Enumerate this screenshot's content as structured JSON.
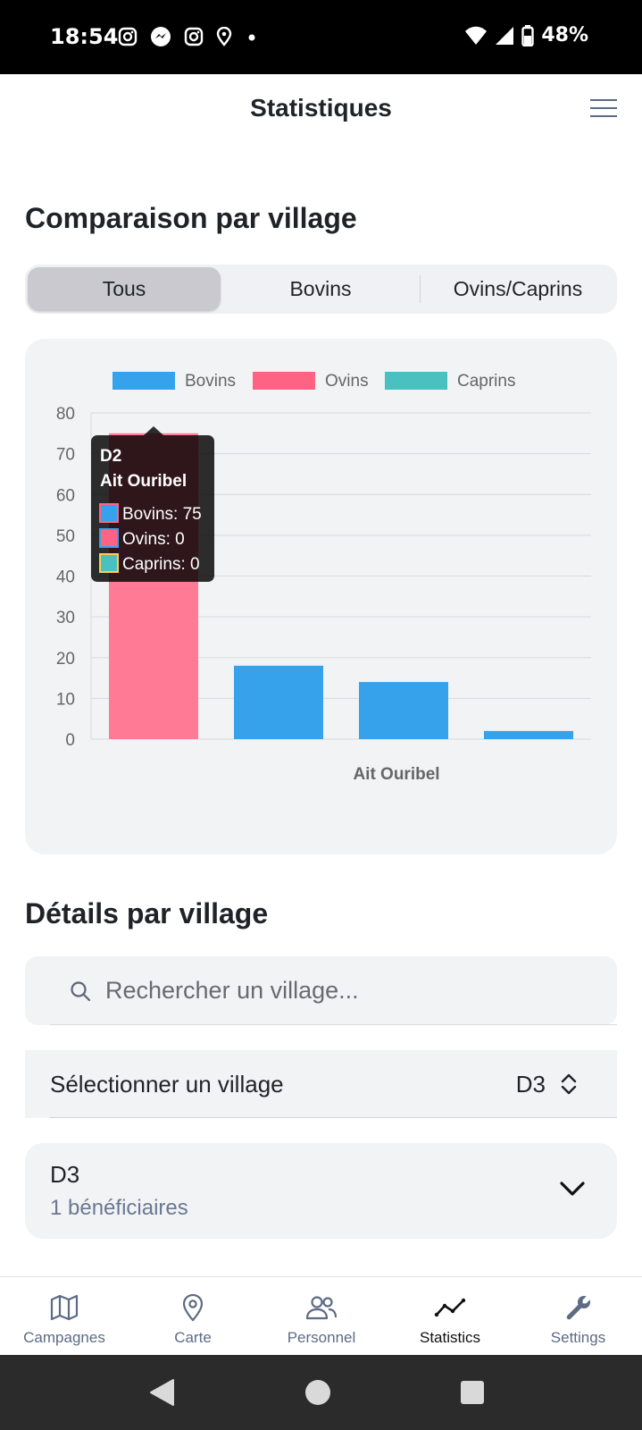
{
  "status_bar": {
    "time": "18:54",
    "battery": "48%",
    "icons": [
      "instagram-icon",
      "messenger-icon",
      "instagram-icon",
      "location-icon",
      "dot-icon",
      "wifi-icon",
      "signal-icon",
      "battery-icon"
    ]
  },
  "header": {
    "title": "Statistiques",
    "menu_icon": "hamburger-menu-icon"
  },
  "comparison": {
    "title": "Comparaison par village",
    "segments": [
      {
        "label": "Tous",
        "active": true
      },
      {
        "label": "Bovins",
        "active": false
      },
      {
        "label": "Ovins/Caprins",
        "active": false
      }
    ]
  },
  "chart_data": {
    "type": "bar",
    "title": "",
    "xlabel": "",
    "ylabel": "",
    "ylim": [
      0,
      80
    ],
    "yticks": [
      "0",
      "10",
      "20",
      "30",
      "40",
      "50",
      "60",
      "70",
      "80"
    ],
    "x_tick_label": "Ait Ouribel",
    "grid": true,
    "legend_position": "top",
    "legend": [
      {
        "name": "Bovins",
        "color": "#36a2eb"
      },
      {
        "name": "Ovins",
        "color": "#ff6384"
      },
      {
        "name": "Caprins",
        "color": "#4bc0c0"
      }
    ],
    "bars": [
      {
        "value": 75,
        "color": "#ff7a95",
        "highlighted": true
      },
      {
        "value": 18,
        "color": "#36a2eb"
      },
      {
        "value": 14,
        "color": "#36a2eb"
      },
      {
        "value": 2,
        "color": "#36a2eb"
      }
    ],
    "tooltip": {
      "title": "D2",
      "subtitle": "Ait Ouribel",
      "lines": [
        {
          "text": "Bovins: 75",
          "swatch": "#36a2eb",
          "border": "#ff6384"
        },
        {
          "text": "Ovins: 0",
          "swatch": "#ff6384",
          "border": "#36a2eb"
        },
        {
          "text": "Caprins: 0",
          "swatch": "#4bc0c0",
          "border": "#ffcd56"
        }
      ]
    }
  },
  "details": {
    "title": "Détails par village",
    "search_placeholder": "Rechercher un village...",
    "search_value": "",
    "select_label": "Sélectionner un village",
    "select_value": "D3",
    "village": {
      "name": "D3",
      "subtitle": "1 bénéficiaires"
    }
  },
  "bottom_nav": [
    {
      "label": "Campagnes",
      "icon": "map-icon",
      "active": false
    },
    {
      "label": "Carte",
      "icon": "map-pin-icon",
      "active": false
    },
    {
      "label": "Personnel",
      "icon": "users-icon",
      "active": false
    },
    {
      "label": "Statistics",
      "icon": "trend-line-icon",
      "active": true
    },
    {
      "label": "Settings",
      "icon": "wrench-icon",
      "active": false
    }
  ]
}
